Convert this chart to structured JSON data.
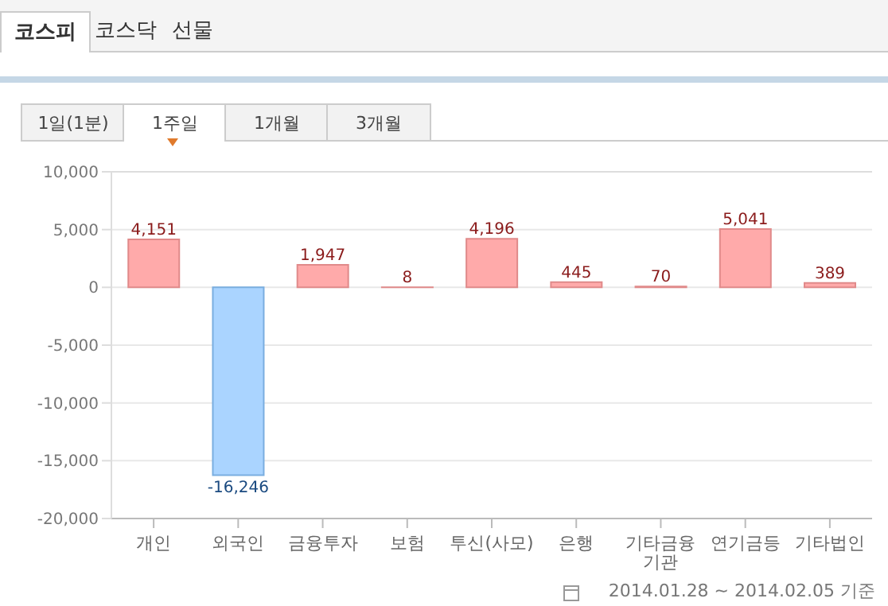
{
  "chart_data": {
    "type": "bar",
    "categories": [
      "개인",
      "외국인",
      "금융투자",
      "보험",
      "투신(사모)",
      "은행",
      "기타금융기관",
      "연기금등",
      "기타법인"
    ],
    "values": [
      4151,
      -16246,
      1947,
      8,
      4196,
      445,
      70,
      5041,
      389
    ],
    "value_labels": [
      "4,151",
      "-16,246",
      "1,947",
      "8",
      "4,196",
      "445",
      "70",
      "5,041",
      "389"
    ],
    "colors": [
      "#ffaaaa",
      "#aad4ff",
      "#ffaaaa",
      "#ffaaaa",
      "#ffaaaa",
      "#ffaaaa",
      "#ffaaaa",
      "#ffaaaa",
      "#ffaaaa"
    ],
    "ylim": [
      -20000,
      10000
    ],
    "yticks": [
      {
        "value": -20000,
        "label": "-20,000"
      },
      {
        "value": -15000,
        "label": "-15,000"
      },
      {
        "value": -10000,
        "label": "-10,000"
      },
      {
        "value": -5000,
        "label": "-5,000"
      },
      0,
      {
        "value": 5000,
        "label": "5,000"
      },
      {
        "value": 10000,
        "label": "10,000"
      }
    ],
    "grid": "y",
    "annotations": [
      "코스피",
      "코스닥",
      "선물",
      "1일(1분)",
      "1주일",
      "1개월",
      "3개월",
      "2014.01.28 ~ 2014.02.05 기준"
    ]
  }
}
